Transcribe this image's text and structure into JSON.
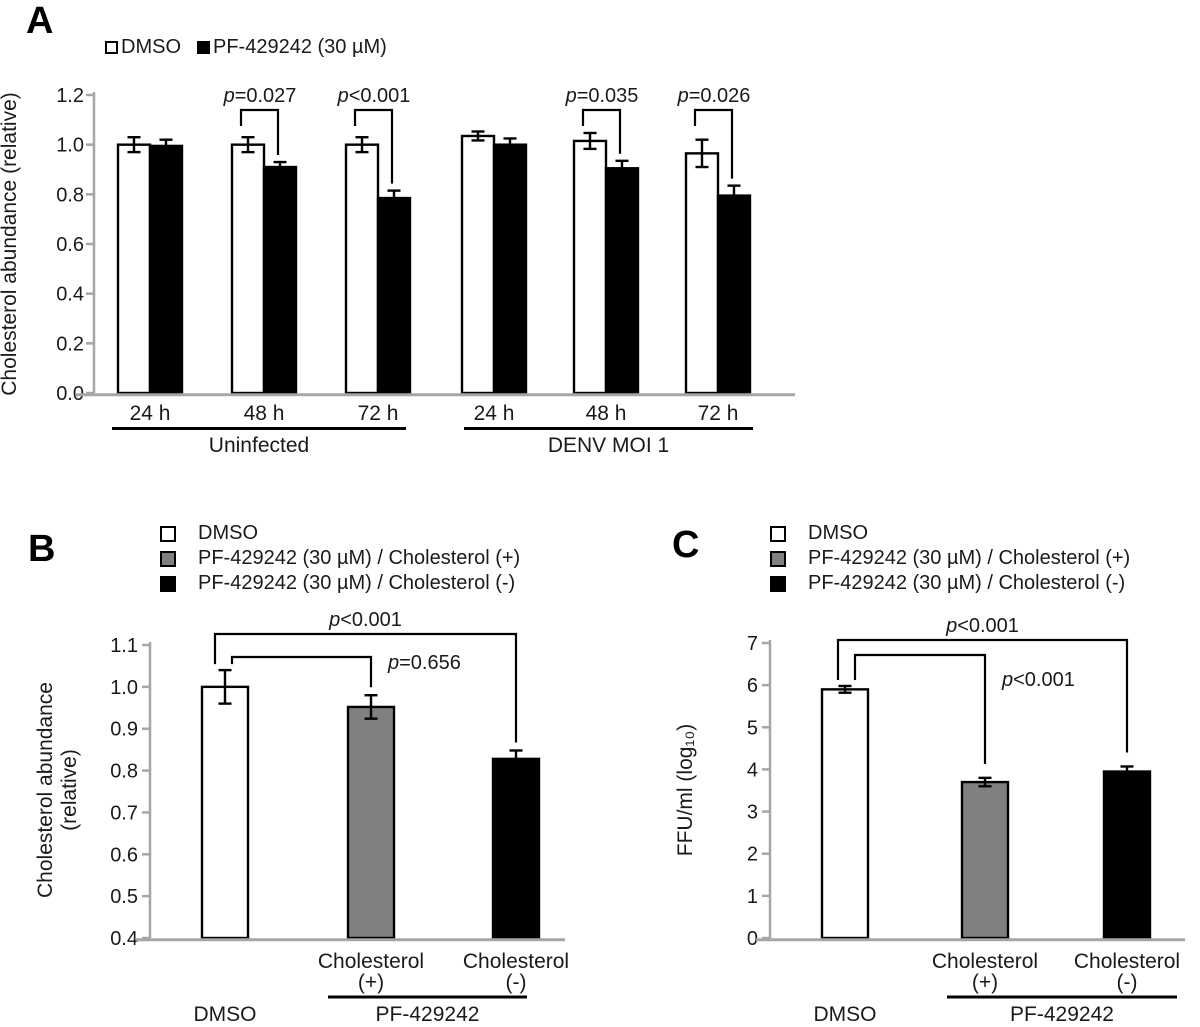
{
  "figure": {
    "background": "#ffffff"
  },
  "colors": {
    "axis_gray": "#a6a6a6",
    "bar_white": "#ffffff",
    "bar_gray": "#808080",
    "bar_black": "#000000",
    "text": "#1a1a1a"
  },
  "chart_data": [
    {
      "panel": "A",
      "type": "bar",
      "ylabel": "Cholesterol abundance (relative)",
      "ylim": [
        0.0,
        1.2
      ],
      "ytick_step": 0.2,
      "ytick_decimals": 1,
      "grid": false,
      "legend_position": "top",
      "legend": [
        {
          "label": "DMSO",
          "color": "#ffffff"
        },
        {
          "label": "PF-429242 (30 µM)",
          "color": "#000000"
        }
      ],
      "categories": [
        "24 h",
        "48 h",
        "72 h",
        "24 h",
        "48 h",
        "72 h"
      ],
      "groups": [
        {
          "label": "Uninfected",
          "span": [
            0,
            2
          ]
        },
        {
          "label": "DENV MOI 1",
          "span": [
            3,
            5
          ]
        }
      ],
      "series": [
        {
          "name": "DMSO",
          "color": "#ffffff",
          "values": [
            1.0,
            1.0,
            1.0,
            1.035,
            1.015,
            0.965
          ],
          "errors": [
            0.03,
            0.03,
            0.03,
            0.018,
            0.032,
            0.055
          ]
        },
        {
          "name": "PF-429242 (30 µM)",
          "color": "#000000",
          "values": [
            0.995,
            0.91,
            0.785,
            1.0,
            0.905,
            0.795
          ],
          "errors": [
            0.025,
            0.02,
            0.03,
            0.025,
            0.03,
            0.04
          ]
        }
      ],
      "significance": [
        {
          "pair": 1,
          "label": "p=0.027"
        },
        {
          "pair": 2,
          "label": "p<0.001"
        },
        {
          "pair": 4,
          "label": "p=0.035"
        },
        {
          "pair": 5,
          "label": "p=0.026"
        }
      ]
    },
    {
      "panel": "B",
      "type": "bar",
      "ylabel_lines": [
        "Cholesterol abundance",
        "(relative)"
      ],
      "ylim": [
        0.4,
        1.1
      ],
      "ytick_step": 0.1,
      "ytick_decimals": 1,
      "grid": false,
      "legend_position": "top",
      "legend": [
        {
          "label": "DMSO",
          "color": "#ffffff"
        },
        {
          "label": "PF-429242 (30 µM) / Cholesterol (+)",
          "color": "#808080"
        },
        {
          "label": "PF-429242 (30 µM) / Cholesterol (-)",
          "color": "#000000"
        }
      ],
      "bars": [
        {
          "name": "DMSO",
          "color": "#ffffff",
          "value": 1.0,
          "error": 0.04
        },
        {
          "name": "PF-429242 (30 µM) / Cholesterol (+)",
          "color": "#808080",
          "value": 0.952,
          "error": 0.028
        },
        {
          "name": "PF-429242 (30 µM) / Cholesterol (-)",
          "color": "#000000",
          "value": 0.828,
          "error": 0.02
        }
      ],
      "bar_sublabels": [
        null,
        [
          "Cholesterol",
          "(+)"
        ],
        [
          "Cholesterol",
          "(-)"
        ]
      ],
      "bottom_labels": {
        "left": "DMSO",
        "right": "PF-429242"
      },
      "significance": [
        {
          "from": 0,
          "to": 2,
          "label": "p<0.001",
          "placement": "center"
        },
        {
          "from": 0,
          "to": 1,
          "label": "p=0.656",
          "placement": "right"
        }
      ]
    },
    {
      "panel": "C",
      "type": "bar",
      "ylabel": "FFU/ml (log₁₀)",
      "ylim": [
        0,
        7
      ],
      "ytick_step": 1,
      "ytick_decimals": 0,
      "grid": false,
      "legend_position": "top",
      "legend": [
        {
          "label": "DMSO",
          "color": "#ffffff"
        },
        {
          "label": "PF-429242 (30 µM) / Cholesterol (+)",
          "color": "#808080"
        },
        {
          "label": "PF-429242 (30 µM) / Cholesterol (-)",
          "color": "#000000"
        }
      ],
      "bars": [
        {
          "name": "DMSO",
          "color": "#ffffff",
          "value": 5.9,
          "error": 0.08
        },
        {
          "name": "PF-429242 (30 µM) / Cholesterol (+)",
          "color": "#808080",
          "value": 3.7,
          "error": 0.1
        },
        {
          "name": "PF-429242 (30 µM) / Cholesterol (-)",
          "color": "#000000",
          "value": 3.95,
          "error": 0.12
        }
      ],
      "bar_sublabels": [
        null,
        [
          "Cholesterol",
          "(+)"
        ],
        [
          "Cholesterol",
          "(-)"
        ]
      ],
      "bottom_labels": {
        "left": "DMSO",
        "right": "PF-429242"
      },
      "significance": [
        {
          "from": 0,
          "to": 2,
          "label": "p<0.001",
          "placement": "center"
        },
        {
          "from": 0,
          "to": 1,
          "label": "p<0.001",
          "placement": "right"
        }
      ]
    }
  ]
}
